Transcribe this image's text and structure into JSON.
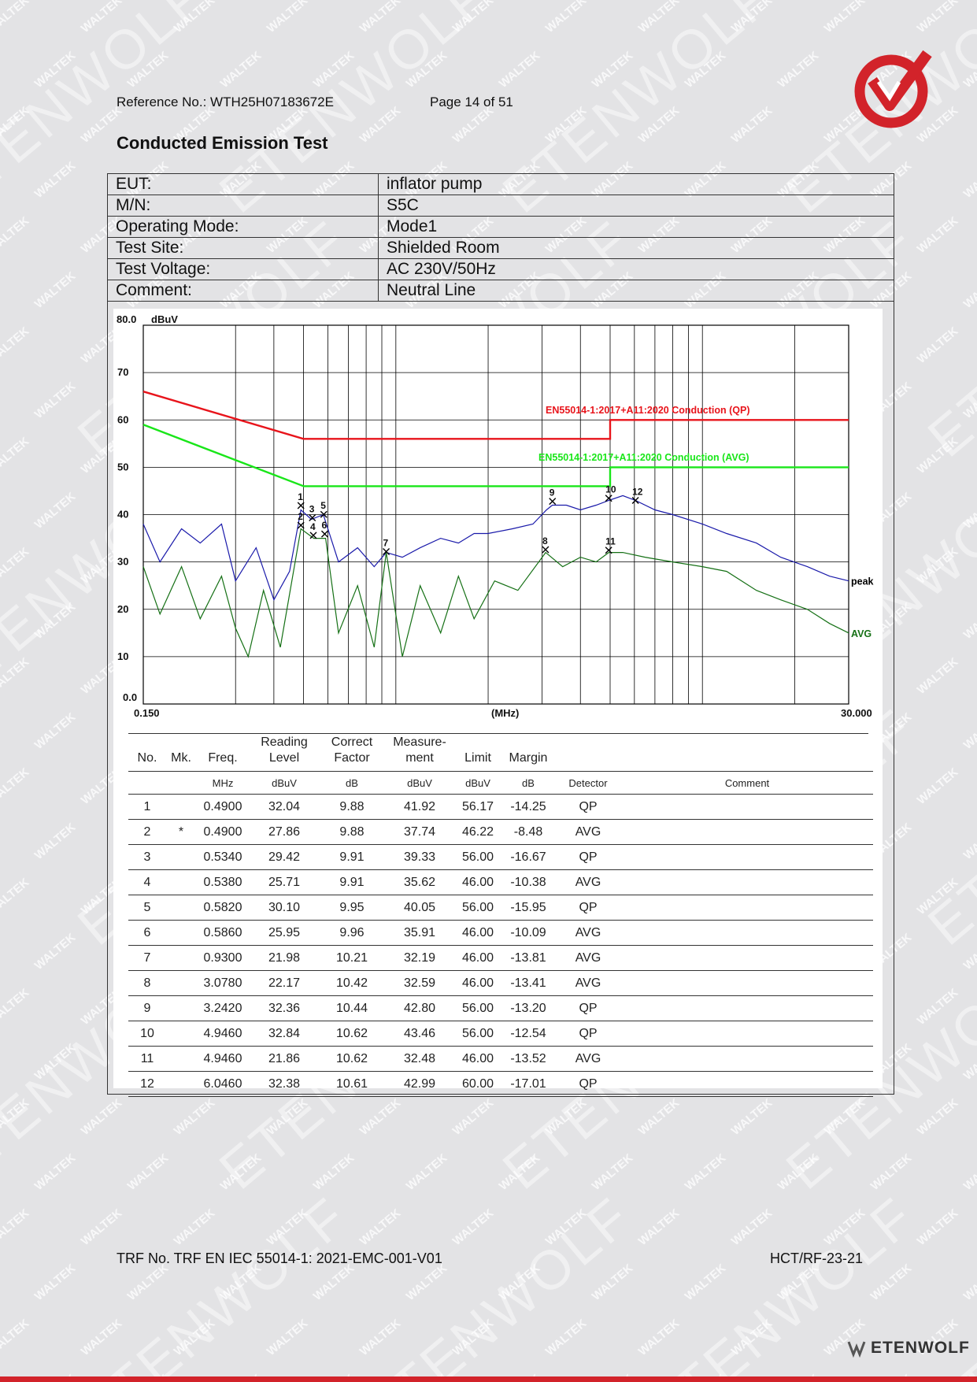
{
  "header": {
    "reference": "Reference No.: WTH25H07183672E",
    "page": "Page 14 of 51"
  },
  "title": "Conducted Emission Test",
  "info_rows": [
    {
      "label": "EUT:",
      "value": "inflator pump"
    },
    {
      "label": "M/N:",
      "value": "S5C"
    },
    {
      "label": "Operating Mode:",
      "value": "Mode1"
    },
    {
      "label": "Test Site:",
      "value": "Shielded Room"
    },
    {
      "label": "Test Voltage:",
      "value": "AC 230V/50Hz"
    },
    {
      "label": "Comment:",
      "value": "Neutral Line"
    }
  ],
  "chart_data": {
    "type": "line",
    "y_unit": "dBuV",
    "y_top_label": "80.0",
    "y_ticks": [
      "70",
      "60",
      "50",
      "40",
      "30",
      "20",
      "10",
      "0.0"
    ],
    "ylim": [
      0,
      80
    ],
    "x_scale": "log",
    "xlim": [
      0.15,
      30
    ],
    "x_start_label": "0.150",
    "x_end_label": "30.000",
    "x_unit_label": "(MHz)",
    "grid": true,
    "limit_lines": [
      {
        "name": "EN55014-1:2017+A11:2020 Conduction (QP)",
        "color": "#e8141b",
        "points": [
          [
            0.15,
            66
          ],
          [
            0.5,
            56
          ],
          [
            5,
            56
          ],
          [
            5,
            60
          ],
          [
            30,
            60
          ]
        ]
      },
      {
        "name": "EN55014-1:2017+A11:2020 Conduction (AVG)",
        "color": "#19e619",
        "points": [
          [
            0.15,
            59
          ],
          [
            0.5,
            46
          ],
          [
            5,
            46
          ],
          [
            5,
            50
          ],
          [
            30,
            50
          ]
        ]
      }
    ],
    "series": [
      {
        "name": "peak",
        "color": "#1a1aaa",
        "x": [
          0.15,
          0.17,
          0.2,
          0.23,
          0.27,
          0.3,
          0.35,
          0.4,
          0.45,
          0.49,
          0.53,
          0.58,
          0.65,
          0.75,
          0.85,
          0.93,
          1.05,
          1.2,
          1.4,
          1.6,
          1.8,
          2.0,
          2.4,
          2.8,
          3.1,
          3.24,
          3.6,
          4.0,
          4.5,
          4.95,
          5.5,
          6.05,
          7.0,
          8.0,
          10.0,
          12.0,
          15.0,
          18.0,
          22.0,
          26.0,
          30.0
        ],
        "y": [
          38,
          30,
          37,
          34,
          38,
          26,
          33,
          22,
          28,
          41,
          39,
          40,
          30,
          33,
          29,
          32,
          31,
          33,
          35,
          34,
          36,
          36,
          37,
          38,
          41,
          42,
          42,
          41,
          42,
          43,
          44,
          43,
          41,
          40,
          38,
          36,
          34,
          31,
          29,
          27,
          26
        ]
      },
      {
        "name": "AVG",
        "color": "#157015",
        "x": [
          0.15,
          0.17,
          0.2,
          0.23,
          0.27,
          0.3,
          0.33,
          0.37,
          0.42,
          0.49,
          0.54,
          0.59,
          0.65,
          0.75,
          0.85,
          0.93,
          1.05,
          1.2,
          1.4,
          1.6,
          1.8,
          2.1,
          2.5,
          3.08,
          3.5,
          4.0,
          4.5,
          4.95,
          5.5,
          6.5,
          8.0,
          10.0,
          12.0,
          15.0,
          18.0,
          22.0,
          26.0,
          30.0
        ],
        "y": [
          29,
          19,
          29,
          18,
          27,
          16,
          10,
          24,
          12,
          37,
          35,
          35,
          15,
          25,
          12,
          32,
          10,
          25,
          15,
          27,
          18,
          26,
          24,
          32,
          29,
          31,
          30,
          32,
          32,
          31,
          30,
          29,
          28,
          24,
          22,
          20,
          17,
          15
        ]
      }
    ],
    "markers": [
      {
        "label": "1",
        "freq": 0.49,
        "level": 41.92
      },
      {
        "label": "2",
        "freq": 0.49,
        "level": 37.74
      },
      {
        "label": "3",
        "freq": 0.534,
        "level": 39.33
      },
      {
        "label": "4",
        "freq": 0.538,
        "level": 35.62
      },
      {
        "label": "5",
        "freq": 0.582,
        "level": 40.05
      },
      {
        "label": "6",
        "freq": 0.586,
        "level": 35.91
      },
      {
        "label": "7",
        "freq": 0.93,
        "level": 32.19
      },
      {
        "label": "8",
        "freq": 3.078,
        "level": 32.59
      },
      {
        "label": "9",
        "freq": 3.242,
        "level": 42.8
      },
      {
        "label": "10",
        "freq": 4.946,
        "level": 43.46
      },
      {
        "label": "11",
        "freq": 4.946,
        "level": 32.48
      },
      {
        "label": "12",
        "freq": 6.046,
        "level": 42.99
      }
    ]
  },
  "table": {
    "headers": {
      "no": "No.",
      "mk": "Mk.",
      "freq": "Freq.",
      "reading_1": "Reading",
      "reading_2": "Level",
      "correct_1": "Correct",
      "correct_2": "Factor",
      "measure_1": "Measure-",
      "measure_2": "ment",
      "limit": "Limit",
      "margin": "Margin"
    },
    "units": [
      "",
      "",
      "MHz",
      "dBuV",
      "dB",
      "dBuV",
      "dBuV",
      "dB",
      "Detector",
      "Comment"
    ],
    "rows": [
      {
        "no": "1",
        "mk": "",
        "freq": "0.4900",
        "reading": "32.04",
        "factor": "9.88",
        "measurement": "41.92",
        "limit": "56.17",
        "margin": "-14.25",
        "detector": "QP"
      },
      {
        "no": "2",
        "mk": "*",
        "freq": "0.4900",
        "reading": "27.86",
        "factor": "9.88",
        "measurement": "37.74",
        "limit": "46.22",
        "margin": "-8.48",
        "detector": "AVG"
      },
      {
        "no": "3",
        "mk": "",
        "freq": "0.5340",
        "reading": "29.42",
        "factor": "9.91",
        "measurement": "39.33",
        "limit": "56.00",
        "margin": "-16.67",
        "detector": "QP"
      },
      {
        "no": "4",
        "mk": "",
        "freq": "0.5380",
        "reading": "25.71",
        "factor": "9.91",
        "measurement": "35.62",
        "limit": "46.00",
        "margin": "-10.38",
        "detector": "AVG"
      },
      {
        "no": "5",
        "mk": "",
        "freq": "0.5820",
        "reading": "30.10",
        "factor": "9.95",
        "measurement": "40.05",
        "limit": "56.00",
        "margin": "-15.95",
        "detector": "QP"
      },
      {
        "no": "6",
        "mk": "",
        "freq": "0.5860",
        "reading": "25.95",
        "factor": "9.96",
        "measurement": "35.91",
        "limit": "46.00",
        "margin": "-10.09",
        "detector": "AVG"
      },
      {
        "no": "7",
        "mk": "",
        "freq": "0.9300",
        "reading": "21.98",
        "factor": "10.21",
        "measurement": "32.19",
        "limit": "46.00",
        "margin": "-13.81",
        "detector": "AVG"
      },
      {
        "no": "8",
        "mk": "",
        "freq": "3.0780",
        "reading": "22.17",
        "factor": "10.42",
        "measurement": "32.59",
        "limit": "46.00",
        "margin": "-13.41",
        "detector": "AVG"
      },
      {
        "no": "9",
        "mk": "",
        "freq": "3.2420",
        "reading": "32.36",
        "factor": "10.44",
        "measurement": "42.80",
        "limit": "56.00",
        "margin": "-13.20",
        "detector": "QP"
      },
      {
        "no": "10",
        "mk": "",
        "freq": "4.9460",
        "reading": "32.84",
        "factor": "10.62",
        "measurement": "43.46",
        "limit": "56.00",
        "margin": "-12.54",
        "detector": "QP"
      },
      {
        "no": "11",
        "mk": "",
        "freq": "4.9460",
        "reading": "21.86",
        "factor": "10.62",
        "measurement": "32.48",
        "limit": "46.00",
        "margin": "-13.52",
        "detector": "AVG"
      },
      {
        "no": "12",
        "mk": "",
        "freq": "6.0460",
        "reading": "32.38",
        "factor": "10.61",
        "measurement": "42.99",
        "limit": "60.00",
        "margin": "-17.01",
        "detector": "QP"
      }
    ]
  },
  "footer": {
    "trf": "TRF No. TRF EN IEC 55014-1: 2021-EMC-001-V01",
    "code": "HCT/RF-23-21",
    "brand": "ETENWOLF"
  },
  "watermarks": {
    "small": "WALTEK",
    "large": "ETENWOLF"
  },
  "colors": {
    "accent_red": "#d2232a",
    "page_bg": "#e3e3e5"
  }
}
